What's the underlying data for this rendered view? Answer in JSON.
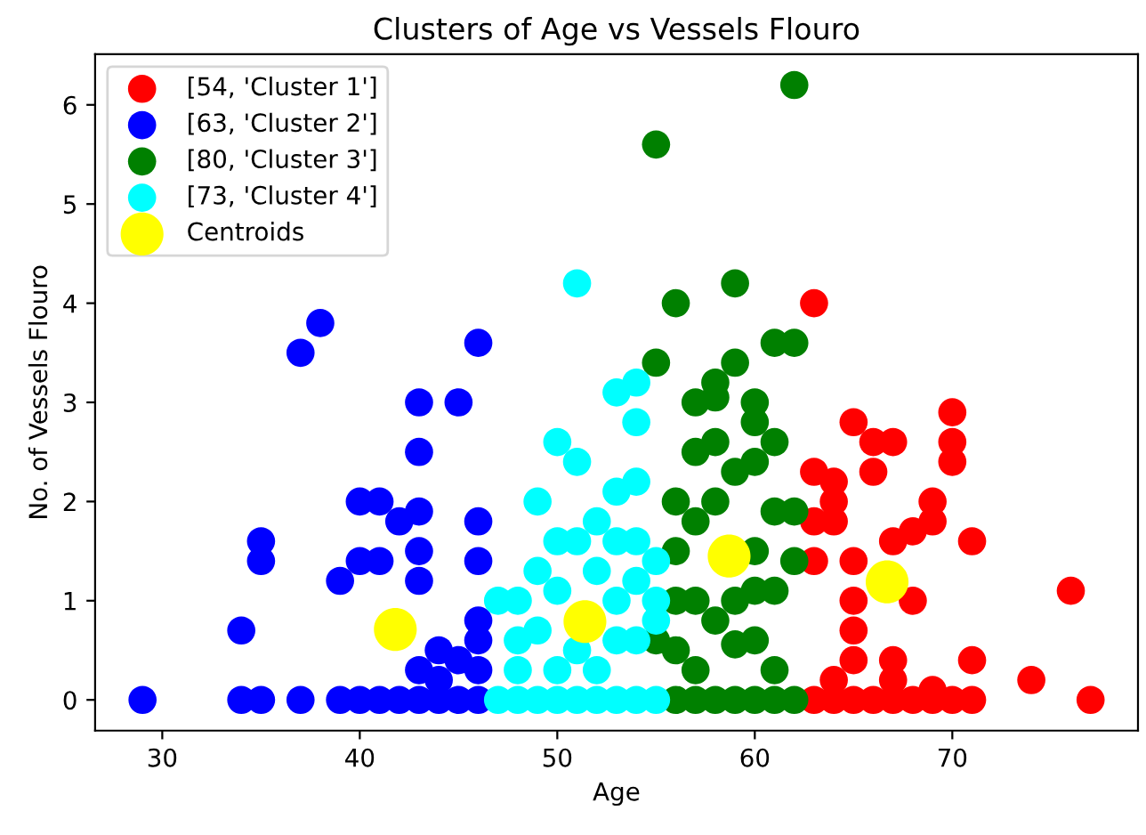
{
  "chart_data": {
    "type": "scatter",
    "title": "Clusters of Age vs Vessels Flouro",
    "xlabel": "Age",
    "ylabel": "No. of Vessels Flouro",
    "xlim": [
      26.6,
      79.4
    ],
    "ylim": [
      -0.31,
      6.51
    ],
    "xticks": [
      30,
      40,
      50,
      60,
      70
    ],
    "yticks": [
      0,
      1,
      2,
      3,
      4,
      5,
      6
    ],
    "grid": false,
    "legend": "top left",
    "marker": "circle",
    "series": [
      {
        "name": "[54, 'Cluster 1']",
        "color": "#ff0000",
        "x": [
          63,
          70,
          70,
          70,
          65,
          66,
          67,
          66,
          63,
          64,
          64,
          64,
          63,
          69,
          69,
          68,
          67,
          71,
          63,
          65,
          68,
          65,
          76,
          71,
          74,
          77,
          63,
          64,
          65,
          66,
          67,
          68,
          69,
          70,
          71,
          65,
          65,
          67,
          67,
          69,
          64
        ],
        "values": [
          4.0,
          2.9,
          2.6,
          2.4,
          2.8,
          2.6,
          2.6,
          2.3,
          2.3,
          2.2,
          2.0,
          1.8,
          1.8,
          2.0,
          1.8,
          1.7,
          1.6,
          1.6,
          1.4,
          1.4,
          1.0,
          1.0,
          1.1,
          0.4,
          0.2,
          0,
          0,
          0,
          0,
          0,
          0,
          0,
          0,
          0,
          0,
          0.7,
          0.4,
          0.4,
          0.2,
          0.1,
          0.2
        ]
      },
      {
        "name": "[63, 'Cluster 2']",
        "color": "#0000ff",
        "x": [
          29,
          34,
          35,
          37,
          39,
          40,
          41,
          42,
          43,
          44,
          45,
          46,
          34,
          35,
          35,
          39,
          40,
          41,
          40,
          41,
          42,
          43,
          43,
          43,
          43,
          43,
          45,
          37,
          38,
          46,
          46,
          46,
          44,
          45,
          46,
          46,
          44,
          43,
          46
        ],
        "values": [
          0,
          0,
          0,
          0,
          0,
          0,
          0,
          0,
          0,
          0,
          0,
          0,
          0.7,
          1.6,
          1.4,
          1.2,
          1.4,
          1.4,
          2.0,
          2.0,
          1.8,
          1.9,
          1.5,
          1.2,
          2.5,
          3.0,
          3.0,
          3.5,
          3.8,
          3.6,
          1.8,
          1.4,
          0.2,
          0.4,
          0.6,
          0.8,
          0.5,
          0.3,
          0.3
        ]
      },
      {
        "name": "[80, 'Cluster 3']",
        "color": "#008000",
        "x": [
          55,
          59,
          56,
          55,
          58,
          59,
          62,
          61,
          62,
          58,
          60,
          60,
          61,
          58,
          60,
          61,
          62,
          60,
          61,
          62,
          59,
          56,
          57,
          58,
          59,
          60,
          61,
          62,
          56,
          56,
          57,
          57,
          56,
          57,
          58,
          57,
          59,
          60,
          60,
          58,
          59,
          56,
          55,
          61,
          57
        ],
        "values": [
          5.6,
          4.2,
          4.0,
          3.4,
          3.2,
          3.4,
          6.2,
          3.6,
          3.6,
          3.05,
          3.0,
          2.8,
          2.6,
          2.6,
          2.4,
          1.9,
          1.9,
          1.1,
          1.1,
          1.4,
          0.56,
          0,
          0,
          0,
          0,
          0,
          0,
          0,
          0.5,
          1.5,
          1.0,
          1.8,
          2.0,
          2.5,
          0.8,
          0.3,
          1.0,
          1.5,
          0.6,
          2.0,
          2.3,
          1.0,
          0.6,
          0.3,
          3.0
        ]
      },
      {
        "name": "[73, 'Cluster 4']",
        "color": "#00ffff",
        "x": [
          51,
          53,
          54,
          54,
          50,
          51,
          49,
          53,
          54,
          50,
          51,
          54,
          47,
          48,
          47,
          48,
          49,
          50,
          51,
          52,
          53,
          54,
          55,
          55,
          48,
          54,
          55,
          49,
          50,
          52,
          53,
          51,
          52,
          53,
          54,
          50,
          48,
          49,
          52,
          53,
          55
        ],
        "values": [
          4.2,
          3.1,
          3.2,
          2.8,
          2.6,
          2.4,
          2.0,
          2.1,
          2.2,
          1.6,
          1.6,
          1.6,
          1.0,
          1.0,
          0,
          0,
          0,
          0,
          0,
          0,
          0,
          0,
          0,
          0.8,
          0.6,
          0.6,
          1.4,
          0.7,
          1.1,
          1.3,
          1.0,
          0.5,
          0.3,
          0.6,
          1.2,
          0.3,
          0.3,
          1.3,
          1.8,
          1.6,
          1.0
        ]
      },
      {
        "name": "Centroids",
        "color": "#ffff00",
        "x": [
          66.7,
          41.8,
          58.7,
          51.4
        ],
        "values": [
          1.19,
          0.71,
          1.45,
          0.79
        ]
      }
    ]
  }
}
